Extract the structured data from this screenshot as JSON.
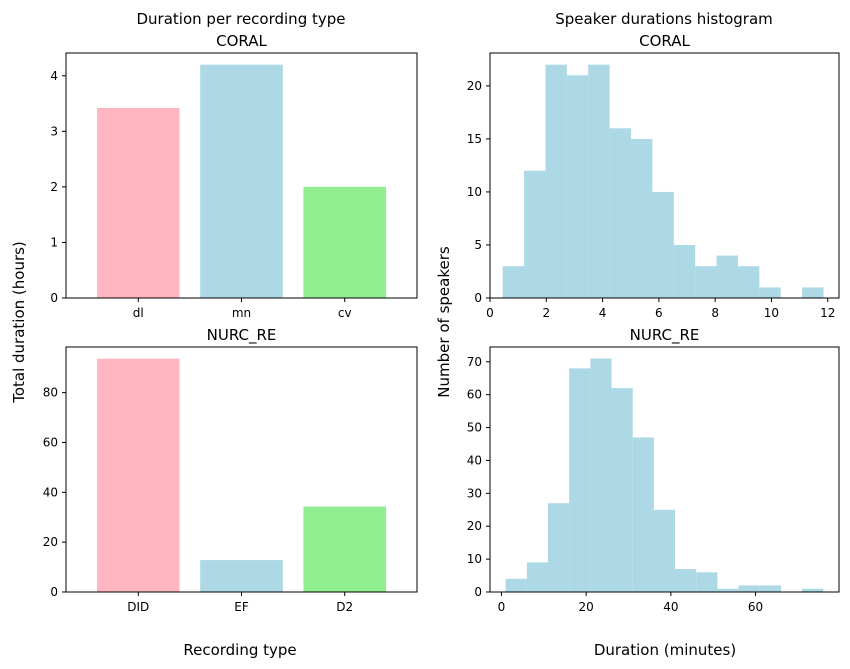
{
  "figure": {
    "left_title": "Duration per recording type",
    "right_title": "Speaker durations histogram",
    "left_ylabel": "Total duration (hours)",
    "left_xlabel": "Recording type",
    "right_ylabel": "Number of speakers",
    "right_xlabel": "Duration (minutes)"
  },
  "chart_data": [
    {
      "id": "bar-coral",
      "type": "bar",
      "title": "CORAL",
      "categories": [
        "dl",
        "mn",
        "cv"
      ],
      "values": [
        3.42,
        4.2,
        2.0
      ],
      "colors": [
        "#ffb6c1",
        "#add8e6",
        "#90ee90"
      ],
      "ylim": [
        0,
        4.41
      ],
      "yticks": [
        0,
        1,
        2,
        3,
        4
      ]
    },
    {
      "id": "bar-nurc",
      "type": "bar",
      "title": "NURC_RE",
      "categories": [
        "DID",
        "EF",
        "D2"
      ],
      "values": [
        93.6,
        12.8,
        34.3
      ],
      "colors": [
        "#ffb6c1",
        "#add8e6",
        "#90ee90"
      ],
      "ylim": [
        0,
        98.3
      ],
      "yticks": [
        0,
        20,
        40,
        60,
        80
      ]
    },
    {
      "id": "hist-coral",
      "type": "bar",
      "title": "CORAL",
      "bin_edges": [
        0.45,
        1.21,
        1.97,
        2.73,
        3.49,
        4.25,
        5.01,
        5.77,
        6.53,
        7.29,
        8.05,
        8.81,
        9.57,
        10.33,
        11.09,
        11.85
      ],
      "counts": [
        3,
        12,
        22,
        21,
        22,
        16,
        15,
        10,
        5,
        3,
        4,
        3,
        1,
        0,
        1
      ],
      "color": "#add8e6",
      "xlim": [
        0,
        12.4
      ],
      "ylim": [
        0,
        23.1
      ],
      "xticks": [
        0,
        2,
        4,
        6,
        8,
        10,
        12
      ],
      "yticks": [
        0,
        5,
        10,
        15,
        20
      ]
    },
    {
      "id": "hist-nurc",
      "type": "bar",
      "title": "NURC_RE",
      "bin_edges": [
        1,
        6,
        11,
        16,
        21,
        26,
        31,
        36,
        41,
        46,
        51,
        56,
        61,
        66,
        71,
        76
      ],
      "counts": [
        4,
        9,
        27,
        68,
        71,
        62,
        47,
        25,
        7,
        6,
        1,
        2,
        2,
        0,
        1
      ],
      "color": "#add8e6",
      "xlim": [
        -2.7,
        79.7
      ],
      "ylim": [
        0,
        74.5
      ],
      "xticks": [
        0,
        20,
        40,
        60
      ],
      "yticks": [
        0,
        10,
        20,
        30,
        40,
        50,
        60,
        70
      ]
    }
  ]
}
